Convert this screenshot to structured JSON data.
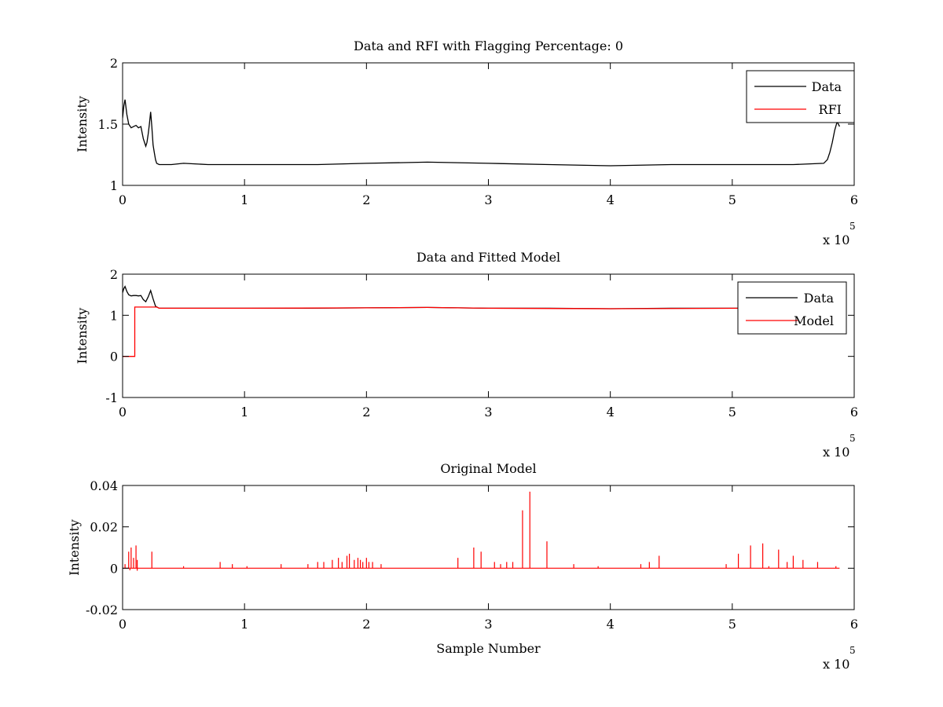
{
  "chart_data": [
    {
      "type": "line",
      "title": "Data and RFI with Flagging Percentage: 0",
      "xlabel": "",
      "ylabel": "Intensity",
      "xlim": [
        0,
        6
      ],
      "ylim": [
        1,
        2
      ],
      "x_multiplier": "x 10",
      "x_multiplier_exp": "5",
      "x_ticks": [
        "0",
        "1",
        "2",
        "3",
        "4",
        "5",
        "6"
      ],
      "y_ticks": [
        "1",
        "1.5",
        "2"
      ],
      "legend_position": "top-right",
      "series": [
        {
          "name": "Data",
          "color": "#000000",
          "x": [
            0,
            0.01,
            0.02,
            0.035,
            0.05,
            0.07,
            0.09,
            0.11,
            0.13,
            0.15,
            0.17,
            0.19,
            0.2,
            0.21,
            0.22,
            0.23,
            0.24,
            0.25,
            0.26,
            0.27,
            0.28,
            0.3,
            0.4,
            0.5,
            0.7,
            1.0,
            1.3,
            1.6,
            2.0,
            2.5,
            3.0,
            3.5,
            4.0,
            4.5,
            5.0,
            5.5,
            5.75,
            5.78,
            5.8,
            5.82,
            5.84,
            5.86,
            5.88
          ],
          "y": [
            1.55,
            1.65,
            1.7,
            1.58,
            1.5,
            1.47,
            1.48,
            1.49,
            1.47,
            1.48,
            1.38,
            1.32,
            1.35,
            1.42,
            1.5,
            1.6,
            1.48,
            1.33,
            1.27,
            1.21,
            1.18,
            1.17,
            1.17,
            1.18,
            1.17,
            1.17,
            1.17,
            1.17,
            1.18,
            1.19,
            1.18,
            1.17,
            1.16,
            1.17,
            1.17,
            1.17,
            1.18,
            1.21,
            1.27,
            1.35,
            1.45,
            1.52,
            1.48
          ]
        },
        {
          "name": "RFI",
          "color": "#ff0000",
          "x": [],
          "y": []
        }
      ]
    },
    {
      "type": "line",
      "title": "Data and Fitted Model",
      "xlabel": "",
      "ylabel": "Intensity",
      "xlim": [
        0,
        6
      ],
      "ylim": [
        -1,
        2
      ],
      "x_multiplier": "x 10",
      "x_multiplier_exp": "5",
      "x_ticks": [
        "0",
        "1",
        "2",
        "3",
        "4",
        "5",
        "6"
      ],
      "y_ticks": [
        "-1",
        "0",
        "1",
        "2"
      ],
      "legend_position": "top-right",
      "series": [
        {
          "name": "Data",
          "color": "#000000",
          "x": [
            0,
            0.01,
            0.02,
            0.035,
            0.05,
            0.07,
            0.09,
            0.11,
            0.13,
            0.15,
            0.17,
            0.19,
            0.21,
            0.23,
            0.25,
            0.27,
            0.3,
            0.5,
            1.0,
            1.5,
            2.0,
            2.5,
            3.0,
            3.5,
            4.0,
            4.5,
            5.0,
            5.1
          ],
          "y": [
            1.55,
            1.65,
            1.7,
            1.58,
            1.5,
            1.47,
            1.48,
            1.48,
            1.47,
            1.48,
            1.38,
            1.33,
            1.45,
            1.6,
            1.4,
            1.22,
            1.17,
            1.17,
            1.17,
            1.17,
            1.18,
            1.19,
            1.17,
            1.17,
            1.16,
            1.17,
            1.17,
            1.17
          ]
        },
        {
          "name": "Model",
          "color": "#ff0000",
          "x": [
            0,
            0.1,
            0.1,
            0.28,
            0.3,
            1.0,
            2.0,
            2.5,
            3.0,
            4.0,
            5.1
          ],
          "y": [
            0,
            0,
            1.2,
            1.2,
            1.17,
            1.17,
            1.18,
            1.19,
            1.17,
            1.16,
            1.17
          ]
        }
      ]
    },
    {
      "type": "line",
      "title": "Original Model",
      "xlabel": "Sample Number",
      "ylabel": "Intensity",
      "xlim": [
        0,
        6
      ],
      "ylim": [
        -0.02,
        0.04
      ],
      "x_multiplier": "x 10",
      "x_multiplier_exp": "5",
      "x_ticks": [
        "0",
        "1",
        "2",
        "3",
        "4",
        "5",
        "6"
      ],
      "y_ticks": [
        "-0.02",
        "0",
        "0.02",
        "0.04"
      ],
      "series": [
        {
          "name": "",
          "color": "#ff0000",
          "x": [
            0.02,
            0.05,
            0.07,
            0.09,
            0.11,
            0.12,
            0.24,
            0.5,
            0.8,
            0.9,
            1.02,
            1.3,
            1.52,
            1.6,
            1.65,
            1.72,
            1.77,
            1.8,
            1.84,
            1.86,
            1.9,
            1.93,
            1.95,
            1.97,
            2.0,
            2.02,
            2.05,
            2.12,
            2.75,
            2.88,
            2.94,
            3.05,
            3.1,
            3.15,
            3.2,
            3.28,
            3.34,
            3.48,
            3.7,
            3.9,
            4.25,
            4.32,
            4.4,
            4.95,
            5.05,
            5.15,
            5.25,
            5.3,
            5.38,
            5.45,
            5.5,
            5.58,
            5.7,
            5.85
          ],
          "y": [
            0.002,
            0.008,
            0.01,
            0.005,
            0.011,
            0.004,
            0.008,
            0.001,
            0.003,
            0.002,
            0.001,
            0.002,
            0.002,
            0.003,
            0.003,
            0.004,
            0.005,
            0.003,
            0.006,
            0.007,
            0.004,
            0.005,
            0.004,
            0.003,
            0.005,
            0.003,
            0.003,
            0.002,
            0.005,
            0.01,
            0.008,
            0.003,
            0.002,
            0.003,
            0.003,
            0.028,
            0.037,
            0.013,
            0.002,
            0.001,
            0.002,
            0.003,
            0.006,
            0.002,
            0.007,
            0.011,
            0.012,
            0.001,
            0.009,
            0.003,
            0.006,
            0.004,
            0.003,
            0.001
          ]
        }
      ]
    }
  ]
}
